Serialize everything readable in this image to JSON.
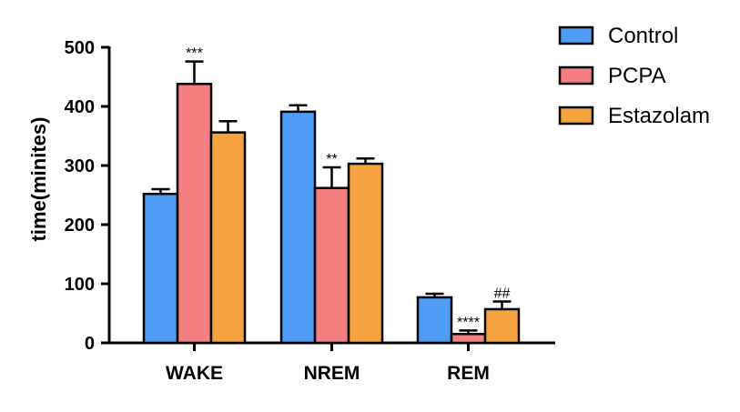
{
  "chart_data": {
    "type": "bar",
    "categories": [
      "WAKE",
      "NREM",
      "REM"
    ],
    "series": [
      {
        "name": "Control",
        "color": "#4f9cf5",
        "values": [
          252,
          391,
          77
        ],
        "errors": [
          8,
          11,
          6
        ]
      },
      {
        "name": "PCPA",
        "color": "#f37f80",
        "values": [
          438,
          262,
          15
        ],
        "errors": [
          38,
          35,
          6
        ]
      },
      {
        "name": "Estazolam",
        "color": "#f7a240",
        "values": [
          356,
          303,
          57
        ],
        "errors": [
          19,
          9,
          13
        ]
      }
    ],
    "annotations": [
      {
        "category": "WAKE",
        "series": "PCPA",
        "text": "***"
      },
      {
        "category": "NREM",
        "series": "PCPA",
        "text": "**"
      },
      {
        "category": "REM",
        "series": "PCPA",
        "text": "****"
      },
      {
        "category": "REM",
        "series": "Estazolam",
        "text": "##"
      }
    ],
    "ylabel": "time(minites)",
    "xlabel": "",
    "ylim": [
      0,
      500
    ],
    "yticks": [
      0,
      100,
      200,
      300,
      400,
      500
    ],
    "legend_position": "top-right",
    "grid": false
  }
}
